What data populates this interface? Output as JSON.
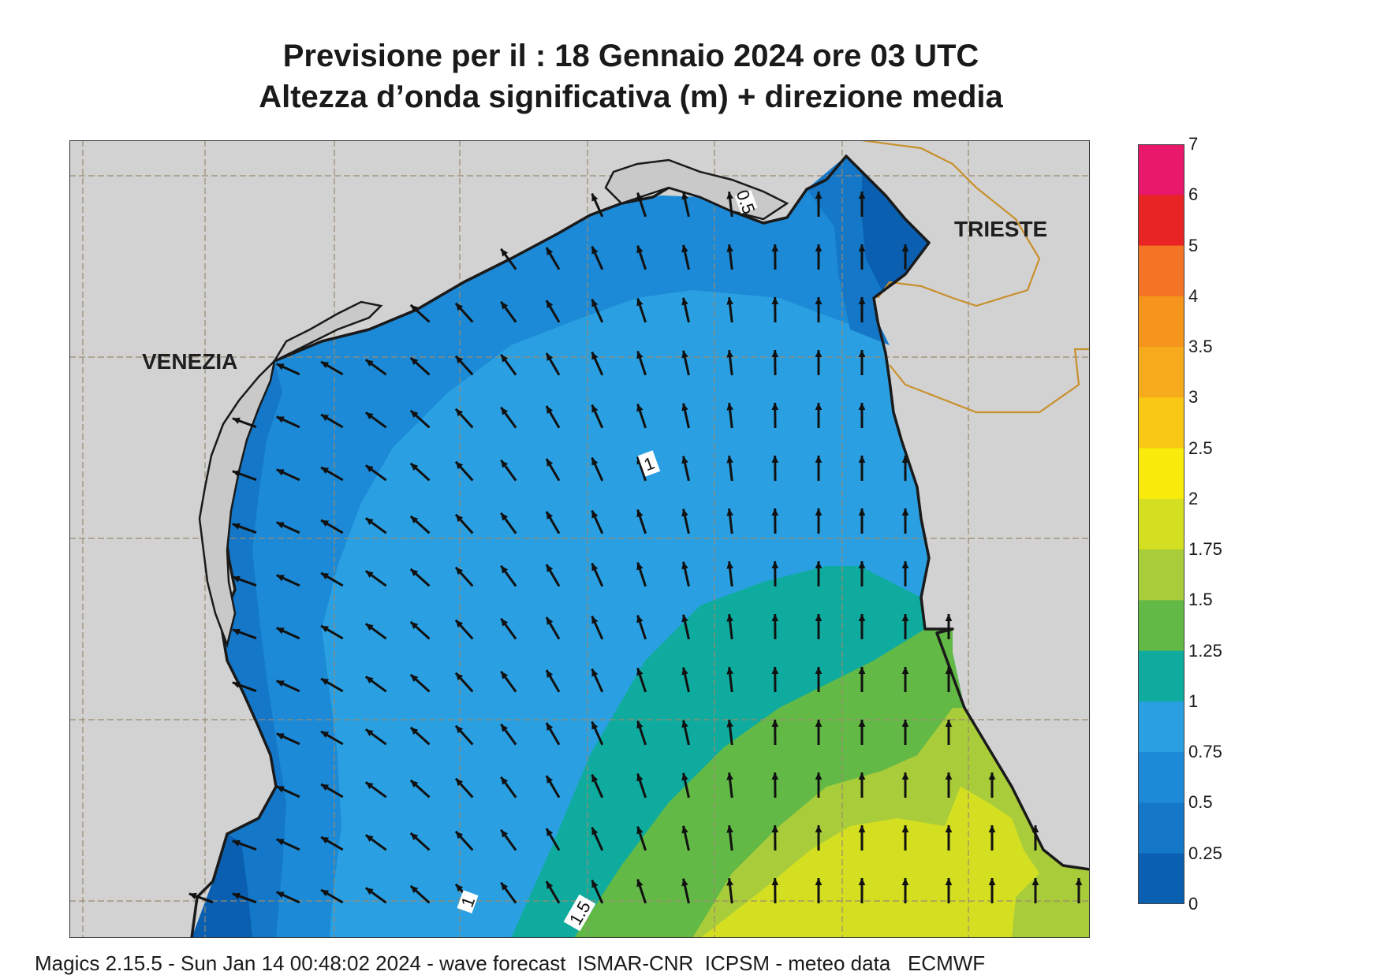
{
  "title": {
    "line1": "Previsione per il  :  18  Gennaio  2024   ore 03 UTC",
    "line2": "Altezza d’onda significativa (m) + direzione media"
  },
  "map": {
    "places": {
      "venezia": "VENEZIA",
      "trieste": "TRIESTE"
    },
    "contour_labels": {
      "c05": "0.5",
      "c1a": "1",
      "c1b": "1",
      "c15": "1.5"
    },
    "colors": {
      "land": "#d2d2d2",
      "band_0_025": "#0a5fb0",
      "band_025_05": "#1477c7",
      "band_05_075": "#1c8ad6",
      "band_075_1": "#2aa0e2",
      "band_1_125": "#10ab9f",
      "band_125_15": "#63b946",
      "band_15_175": "#a9cc3a",
      "band_175_2": "#d4df22",
      "coastline": "#1a1a1a",
      "border": "#c8902c",
      "grid": "#9a8a70"
    },
    "arrows": "mean wave direction arrows"
  },
  "legend": {
    "ticks": [
      "7",
      "6",
      "5",
      "4",
      "3.5",
      "3",
      "2.5",
      "2",
      "1.75",
      "1.5",
      "1.25",
      "1",
      "0.75",
      "0.5",
      "0.25",
      "0"
    ],
    "colors": [
      "#e8186a",
      "#e82424",
      "#f27424",
      "#f5951c",
      "#f5ab1c",
      "#f9c814",
      "#f9ec0c",
      "#d4df22",
      "#a9cc3a",
      "#63b946",
      "#10ab9f",
      "#2aa0e2",
      "#1c8ad6",
      "#1477c7",
      "#0a5fb0"
    ]
  },
  "footer": "Magics 2.15.5 - Sun Jan 14 00:48:02 2024 - wave forecast  ISMAR-CNR  ICPSM - meteo data   ECMWF"
}
